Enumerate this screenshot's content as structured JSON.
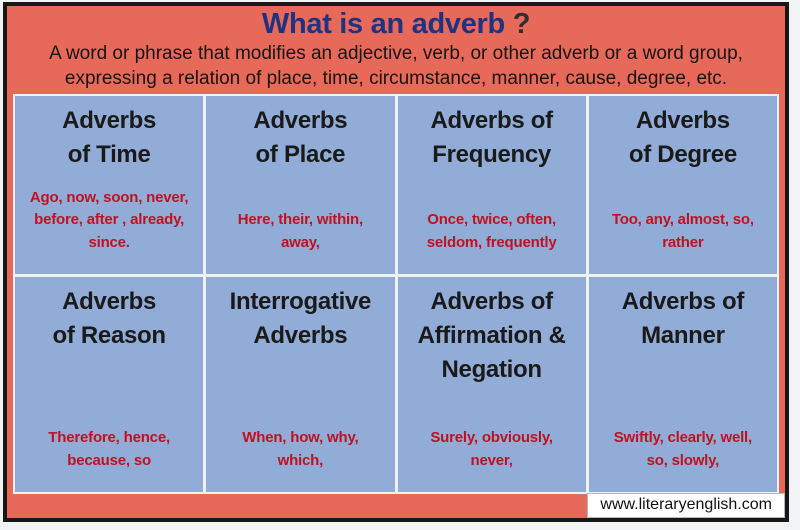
{
  "header": {
    "title": "What is an adverb",
    "question_mark": " ?",
    "subtitle": "A word or phrase that modifies an adjective, verb, or other adverb or a word group,\nexpressing a relation of place, time, circumstance, manner, cause, degree, etc."
  },
  "cells": [
    {
      "heading": "Adverbs\nof Time",
      "words": "Ago, now, soon, never,\nbefore, after , already,\nsince."
    },
    {
      "heading": "Adverbs\nof Place",
      "words": "Here, their, within,\naway,"
    },
    {
      "heading": "Adverbs of\nFrequency",
      "words": "Once, twice, often,\nseldom, frequently"
    },
    {
      "heading": "Adverbs\nof Degree",
      "words": "Too, any, almost, so,\nrather"
    },
    {
      "heading": "Adverbs\nof Reason",
      "words": "Therefore, hence,\nbecause, so"
    },
    {
      "heading": "Interrogative\nAdverbs",
      "words": "When, how, why,\nwhich,"
    },
    {
      "heading": "Adverbs of\nAffirmation &\nNegation",
      "words": "Surely, obviously,\nnever,"
    },
    {
      "heading": "Adverbs of\nManner",
      "words": "Swiftly, clearly, well,\nso, slowly,"
    }
  ],
  "footer": {
    "website": "www.literaryenglish.com"
  },
  "colors": {
    "background_salmon": "#e7695a",
    "cell_blue": "#92acd8",
    "separator_white": "#eef2f8",
    "words_red": "#c0111f",
    "title_navy": "#1f3380",
    "heading_black": "#1a1a1a",
    "frame_border": "#171717"
  }
}
